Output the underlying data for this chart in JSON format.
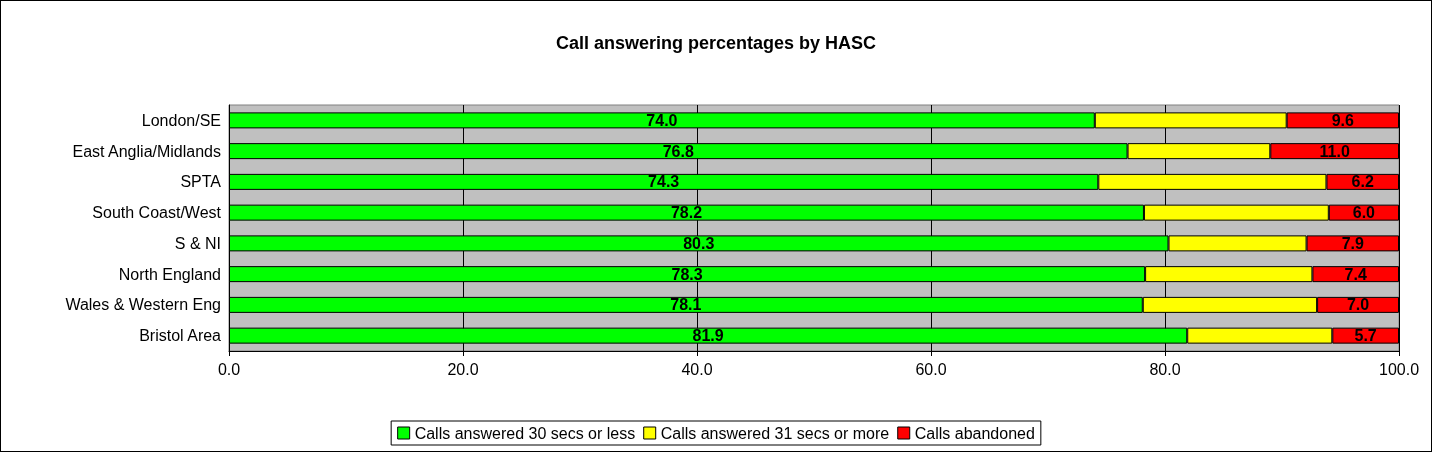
{
  "chart_data": {
    "type": "bar",
    "title": "Call answering percentages by HASC",
    "orientation": "horizontal",
    "stacked": true,
    "categories": [
      "London/SE",
      "East Anglia/Midlands",
      "SPTA",
      "South Coast/West",
      "S & NI",
      "North England",
      "Wales & Western Eng",
      "Bristol Area"
    ],
    "series": [
      {
        "name": "Calls answered 30 secs or less",
        "color": "#00ff00",
        "values": [
          74.0,
          76.8,
          74.3,
          78.2,
          80.3,
          78.3,
          78.1,
          81.9
        ],
        "value_labels": [
          "74.0",
          "76.8",
          "74.3",
          "78.2",
          "80.3",
          "78.3",
          "78.1",
          "81.9"
        ]
      },
      {
        "name": "Calls answered 31 secs or more",
        "color": "#ffff00",
        "values": [
          16.4,
          12.2,
          19.5,
          15.8,
          11.8,
          14.3,
          14.9,
          12.4
        ]
      },
      {
        "name": "Calls abandoned",
        "color": "#ff0000",
        "values": [
          9.6,
          11.0,
          6.2,
          6.0,
          7.9,
          7.4,
          7.0,
          5.7
        ],
        "value_labels": [
          "9.6",
          "11.0",
          "6.2",
          "6.0",
          "7.9",
          "7.4",
          "7.0",
          "5.7"
        ]
      }
    ],
    "xlim": [
      0,
      100
    ],
    "xticks": [
      {
        "value": 0,
        "label": "0.0"
      },
      {
        "value": 20,
        "label": "20.0"
      },
      {
        "value": 40,
        "label": "40.0"
      },
      {
        "value": 60,
        "label": "60.0"
      },
      {
        "value": 80,
        "label": "80.0"
      },
      {
        "value": 100,
        "label": "100.0"
      }
    ],
    "grid": "x",
    "legend": "bottom"
  }
}
